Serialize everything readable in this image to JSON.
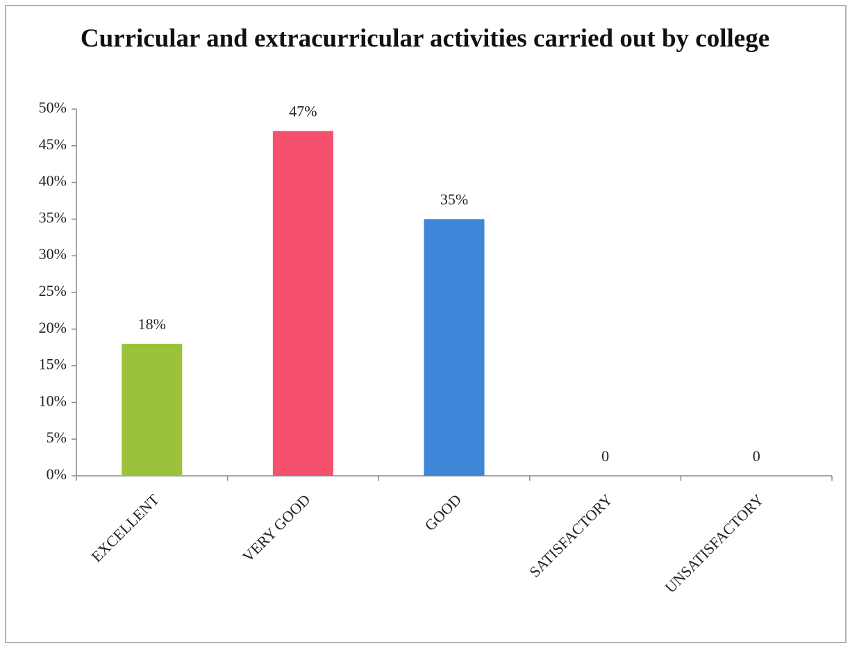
{
  "chart_data": {
    "type": "bar",
    "title": "Curricular and extracurricular activities carried out by college",
    "categories": [
      "EXCELLENT",
      "VERY GOOD",
      "GOOD",
      "SATISFACTORY",
      "UNSATISFACTORY"
    ],
    "values": [
      18,
      47,
      35,
      0,
      0
    ],
    "value_labels": [
      "18%",
      "47%",
      "35%",
      "0",
      "0"
    ],
    "colors": [
      "#9cc23c",
      "#f5506e",
      "#3f86d8",
      null,
      null
    ],
    "ylim": [
      0,
      50
    ],
    "yticks": [
      {
        "value": 0,
        "label": "0%"
      },
      {
        "value": 5,
        "label": "5%"
      },
      {
        "value": 10,
        "label": "10%"
      },
      {
        "value": 15,
        "label": "15%"
      },
      {
        "value": 20,
        "label": "20%"
      },
      {
        "value": 25,
        "label": "25%"
      },
      {
        "value": 30,
        "label": "30%"
      },
      {
        "value": 35,
        "label": "35%"
      },
      {
        "value": 40,
        "label": "40%"
      },
      {
        "value": 45,
        "label": "45%"
      },
      {
        "value": 50,
        "label": "50%"
      }
    ],
    "grid": false
  }
}
